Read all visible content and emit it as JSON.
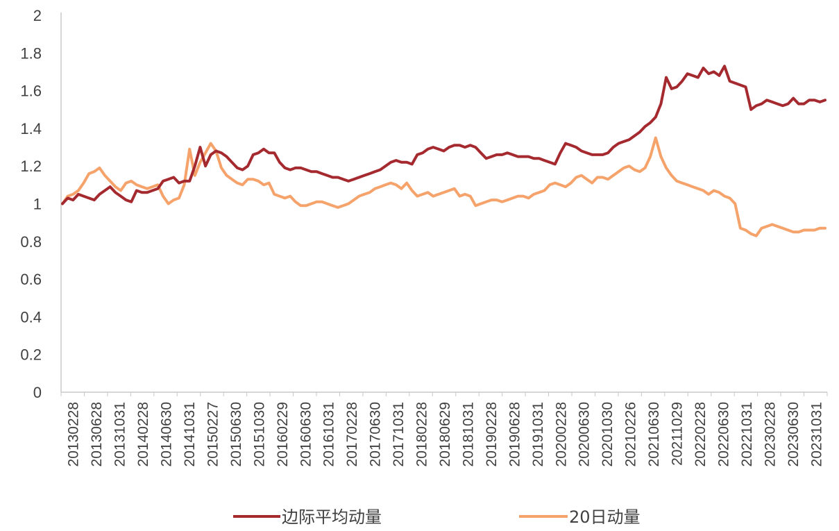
{
  "chart_data": {
    "type": "line",
    "title": "",
    "xlabel": "",
    "ylabel": "",
    "ylim": [
      0,
      2
    ],
    "yticks": [
      "0",
      "0.2",
      "0.4",
      "0.6",
      "0.8",
      "1",
      "1.2",
      "1.4",
      "1.6",
      "1.8",
      "2"
    ],
    "grid": false,
    "legend_position": "bottom",
    "x_tick_labels": [
      "20130228",
      "20130628",
      "20131031",
      "20140228",
      "20140630",
      "20141031",
      "20150227",
      "20150630",
      "20151030",
      "20160229",
      "20160630",
      "20161031",
      "20170228",
      "20170630",
      "20171031",
      "20180228",
      "20180629",
      "20181031",
      "20190228",
      "20190628",
      "20191031",
      "20200228",
      "20200630",
      "20201030",
      "20210226",
      "20210630",
      "20211029",
      "20220228",
      "20220630",
      "20221031",
      "20230228",
      "20230630",
      "20231031"
    ],
    "series": [
      {
        "name": "边际平均动量",
        "color": "#a52a2f",
        "values": [
          1.0,
          1.03,
          1.02,
          1.05,
          1.04,
          1.03,
          1.02,
          1.05,
          1.07,
          1.09,
          1.06,
          1.04,
          1.02,
          1.01,
          1.07,
          1.06,
          1.06,
          1.07,
          1.08,
          1.12,
          1.13,
          1.14,
          1.11,
          1.12,
          1.12,
          1.2,
          1.3,
          1.2,
          1.26,
          1.28,
          1.27,
          1.25,
          1.22,
          1.19,
          1.18,
          1.2,
          1.26,
          1.27,
          1.29,
          1.27,
          1.27,
          1.22,
          1.19,
          1.18,
          1.19,
          1.19,
          1.18,
          1.17,
          1.17,
          1.16,
          1.15,
          1.14,
          1.14,
          1.13,
          1.12,
          1.13,
          1.14,
          1.15,
          1.16,
          1.17,
          1.18,
          1.2,
          1.22,
          1.23,
          1.22,
          1.22,
          1.21,
          1.26,
          1.27,
          1.29,
          1.3,
          1.29,
          1.28,
          1.3,
          1.31,
          1.31,
          1.3,
          1.31,
          1.3,
          1.27,
          1.24,
          1.25,
          1.26,
          1.26,
          1.27,
          1.26,
          1.25,
          1.25,
          1.25,
          1.24,
          1.24,
          1.23,
          1.22,
          1.21,
          1.27,
          1.32,
          1.31,
          1.3,
          1.28,
          1.27,
          1.26,
          1.26,
          1.26,
          1.27,
          1.3,
          1.32,
          1.33,
          1.34,
          1.36,
          1.38,
          1.41,
          1.43,
          1.46,
          1.53,
          1.67,
          1.61,
          1.62,
          1.65,
          1.69,
          1.68,
          1.67,
          1.72,
          1.69,
          1.7,
          1.68,
          1.73,
          1.65,
          1.64,
          1.63,
          1.62,
          1.5,
          1.52,
          1.53,
          1.55,
          1.54,
          1.53,
          1.52,
          1.53,
          1.56,
          1.53,
          1.53,
          1.55,
          1.55,
          1.54,
          1.55
        ]
      },
      {
        "name": "20日动量",
        "color": "#f5a26b",
        "values": [
          1.0,
          1.04,
          1.05,
          1.07,
          1.11,
          1.16,
          1.17,
          1.19,
          1.15,
          1.12,
          1.09,
          1.07,
          1.11,
          1.12,
          1.1,
          1.09,
          1.08,
          1.09,
          1.1,
          1.04,
          1.0,
          1.02,
          1.03,
          1.1,
          1.29,
          1.15,
          1.22,
          1.27,
          1.32,
          1.28,
          1.19,
          1.15,
          1.13,
          1.11,
          1.1,
          1.13,
          1.13,
          1.12,
          1.1,
          1.11,
          1.05,
          1.04,
          1.03,
          1.04,
          1.01,
          0.99,
          0.99,
          1.0,
          1.01,
          1.01,
          1.0,
          0.99,
          0.98,
          0.99,
          1.0,
          1.02,
          1.04,
          1.05,
          1.06,
          1.08,
          1.09,
          1.1,
          1.11,
          1.1,
          1.08,
          1.11,
          1.07,
          1.04,
          1.05,
          1.06,
          1.04,
          1.05,
          1.06,
          1.07,
          1.08,
          1.04,
          1.05,
          1.04,
          0.99,
          1.0,
          1.01,
          1.02,
          1.02,
          1.01,
          1.02,
          1.03,
          1.04,
          1.04,
          1.03,
          1.05,
          1.06,
          1.07,
          1.1,
          1.11,
          1.1,
          1.09,
          1.11,
          1.14,
          1.15,
          1.13,
          1.11,
          1.14,
          1.14,
          1.13,
          1.15,
          1.17,
          1.19,
          1.2,
          1.18,
          1.17,
          1.19,
          1.25,
          1.35,
          1.25,
          1.19,
          1.15,
          1.12,
          1.11,
          1.1,
          1.09,
          1.08,
          1.07,
          1.05,
          1.07,
          1.06,
          1.04,
          1.03,
          1.0,
          0.87,
          0.86,
          0.84,
          0.83,
          0.87,
          0.88,
          0.89,
          0.88,
          0.87,
          0.86,
          0.85,
          0.85,
          0.86,
          0.86,
          0.86,
          0.87,
          0.87
        ]
      }
    ]
  }
}
